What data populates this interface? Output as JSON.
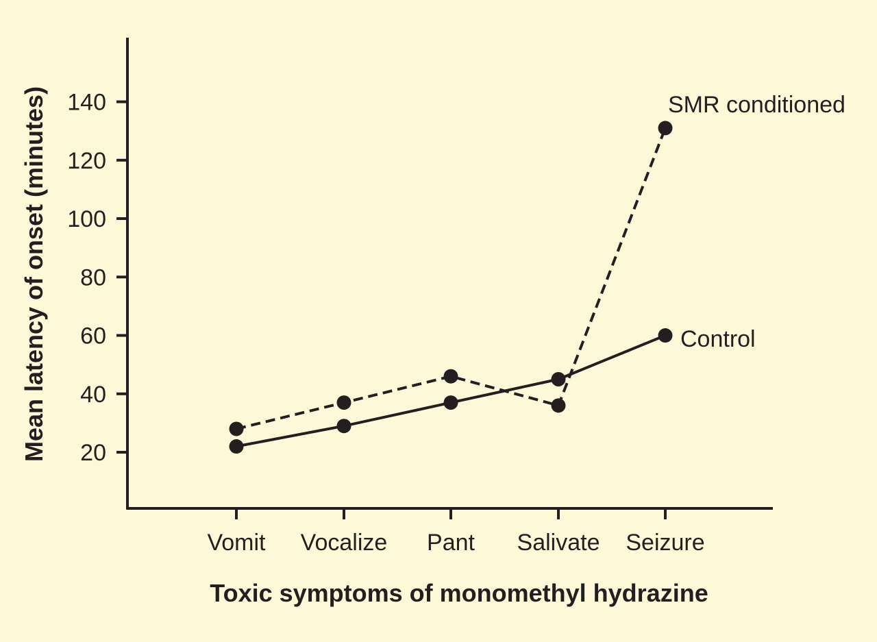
{
  "chart_data": {
    "type": "line",
    "xlabel": "Toxic symptoms of monomethyl hydrazine",
    "ylabel": "Mean latency of onset (minutes)",
    "categories": [
      "Vomit",
      "Vocalize",
      "Pant",
      "Salivate",
      "Seizure"
    ],
    "yticks": [
      20,
      40,
      60,
      80,
      100,
      120,
      140
    ],
    "ylim": [
      0,
      162
    ],
    "grid": false,
    "legend": "direct labels at line ends",
    "series": [
      {
        "name": "SMR conditioned",
        "style": "dashed",
        "values": [
          28,
          37,
          46,
          36,
          131
        ]
      },
      {
        "name": "Control",
        "style": "solid",
        "values": [
          22,
          29,
          37,
          45,
          60
        ]
      }
    ],
    "colors": {
      "background": "#fdf9d8",
      "ink": "#231f20"
    }
  }
}
